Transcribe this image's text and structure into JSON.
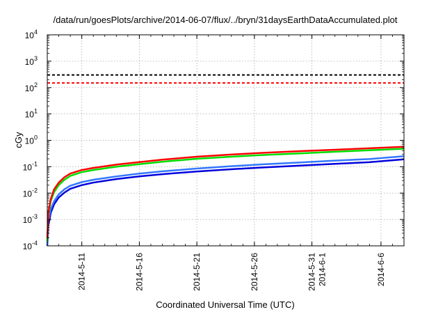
{
  "chart_data": {
    "type": "line",
    "title": "/data/run/goesPlots/archive/2014-06-07/flux/../bryn/31daysEarthDataAccumulated.plot",
    "xlabel": "Coordinated Universal Time (UTC)",
    "ylabel": "cGy",
    "yscale": "log",
    "ylim": [
      0.0001,
      10000
    ],
    "xlim": [
      "2014-05-08",
      "2014-06-08"
    ],
    "grid": true,
    "y_ticks": [
      {
        "base": "10",
        "exp": "-4",
        "value": 0.0001
      },
      {
        "base": "10",
        "exp": "-3",
        "value": 0.001
      },
      {
        "base": "10",
        "exp": "-2",
        "value": 0.01
      },
      {
        "base": "10",
        "exp": "-1",
        "value": 0.1
      },
      {
        "base": "10",
        "exp": "0",
        "value": 1
      },
      {
        "base": "10",
        "exp": "1",
        "value": 10
      },
      {
        "base": "10",
        "exp": "2",
        "value": 100
      },
      {
        "base": "10",
        "exp": "3",
        "value": 1000
      },
      {
        "base": "10",
        "exp": "4",
        "value": 10000
      }
    ],
    "x_ticks": [
      {
        "date": "2014-05-11",
        "labels": [
          "2014-5-11"
        ]
      },
      {
        "date": "2014-05-16",
        "labels": [
          "2014-5-16"
        ]
      },
      {
        "date": "2014-05-21",
        "labels": [
          "2014-5-21"
        ]
      },
      {
        "date": "2014-05-26",
        "labels": [
          "2014-5-26"
        ]
      },
      {
        "date": "2014-05-31",
        "labels": [
          "2014-5-31",
          "2014-6-1"
        ]
      },
      {
        "date": "2014-06-06",
        "labels": [
          "2014-6-6"
        ]
      }
    ],
    "thresholds": [
      {
        "y": 300,
        "color": "#000000",
        "style": "dashed"
      },
      {
        "y": 150,
        "color": "#ff0000",
        "style": "dashed"
      }
    ],
    "series": [
      {
        "color": "#ff0000",
        "x": [
          "2014-05-08",
          "2014-05-08.1",
          "2014-05-08.3",
          "2014-05-08.6",
          "2014-05-09",
          "2014-05-09.5",
          "2014-05-10",
          "2014-05-11",
          "2014-05-12",
          "2014-05-14",
          "2014-05-16",
          "2014-05-18",
          "2014-05-21",
          "2014-05-24",
          "2014-05-27",
          "2014-05-30",
          "2014-06-02",
          "2014-06-05",
          "2014-06-08"
        ],
        "values": [
          0.0002,
          0.002,
          0.006,
          0.014,
          0.025,
          0.04,
          0.055,
          0.075,
          0.09,
          0.12,
          0.15,
          0.185,
          0.24,
          0.29,
          0.34,
          0.39,
          0.44,
          0.5,
          0.57
        ]
      },
      {
        "color": "#00dd00",
        "x": [
          "2014-05-08",
          "2014-05-08.1",
          "2014-05-08.3",
          "2014-05-08.6",
          "2014-05-09",
          "2014-05-09.5",
          "2014-05-10",
          "2014-05-11",
          "2014-05-12",
          "2014-05-14",
          "2014-05-16",
          "2014-05-18",
          "2014-05-21",
          "2014-05-24",
          "2014-05-27",
          "2014-05-30",
          "2014-06-02",
          "2014-06-05",
          "2014-06-08"
        ],
        "values": [
          0.00015,
          0.0016,
          0.005,
          0.011,
          0.02,
          0.032,
          0.045,
          0.062,
          0.075,
          0.1,
          0.125,
          0.155,
          0.2,
          0.24,
          0.28,
          0.32,
          0.37,
          0.42,
          0.48
        ]
      },
      {
        "color": "#3377ff",
        "x": [
          "2014-05-08",
          "2014-05-08.1",
          "2014-05-08.3",
          "2014-05-08.6",
          "2014-05-09",
          "2014-05-09.5",
          "2014-05-10",
          "2014-05-11",
          "2014-05-12",
          "2014-05-14",
          "2014-05-16",
          "2014-05-18",
          "2014-05-21",
          "2014-05-24",
          "2014-05-27",
          "2014-05-30",
          "2014-06-02",
          "2014-06-05",
          "2014-06-08"
        ],
        "values": [
          0.0001,
          0.0009,
          0.0025,
          0.005,
          0.009,
          0.014,
          0.019,
          0.026,
          0.032,
          0.043,
          0.055,
          0.067,
          0.085,
          0.105,
          0.125,
          0.145,
          0.17,
          0.195,
          0.25
        ]
      },
      {
        "color": "#0000dd",
        "x": [
          "2014-05-08",
          "2014-05-08.1",
          "2014-05-08.3",
          "2014-05-08.6",
          "2014-05-09",
          "2014-05-09.5",
          "2014-05-10",
          "2014-05-11",
          "2014-05-12",
          "2014-05-14",
          "2014-05-16",
          "2014-05-18",
          "2014-05-21",
          "2014-05-24",
          "2014-05-27",
          "2014-05-30",
          "2014-06-02",
          "2014-06-05",
          "2014-06-08"
        ],
        "values": [
          0.0001,
          0.0006,
          0.0018,
          0.0038,
          0.0068,
          0.0105,
          0.0145,
          0.02,
          0.025,
          0.034,
          0.043,
          0.052,
          0.066,
          0.08,
          0.095,
          0.11,
          0.128,
          0.148,
          0.19
        ]
      }
    ]
  }
}
